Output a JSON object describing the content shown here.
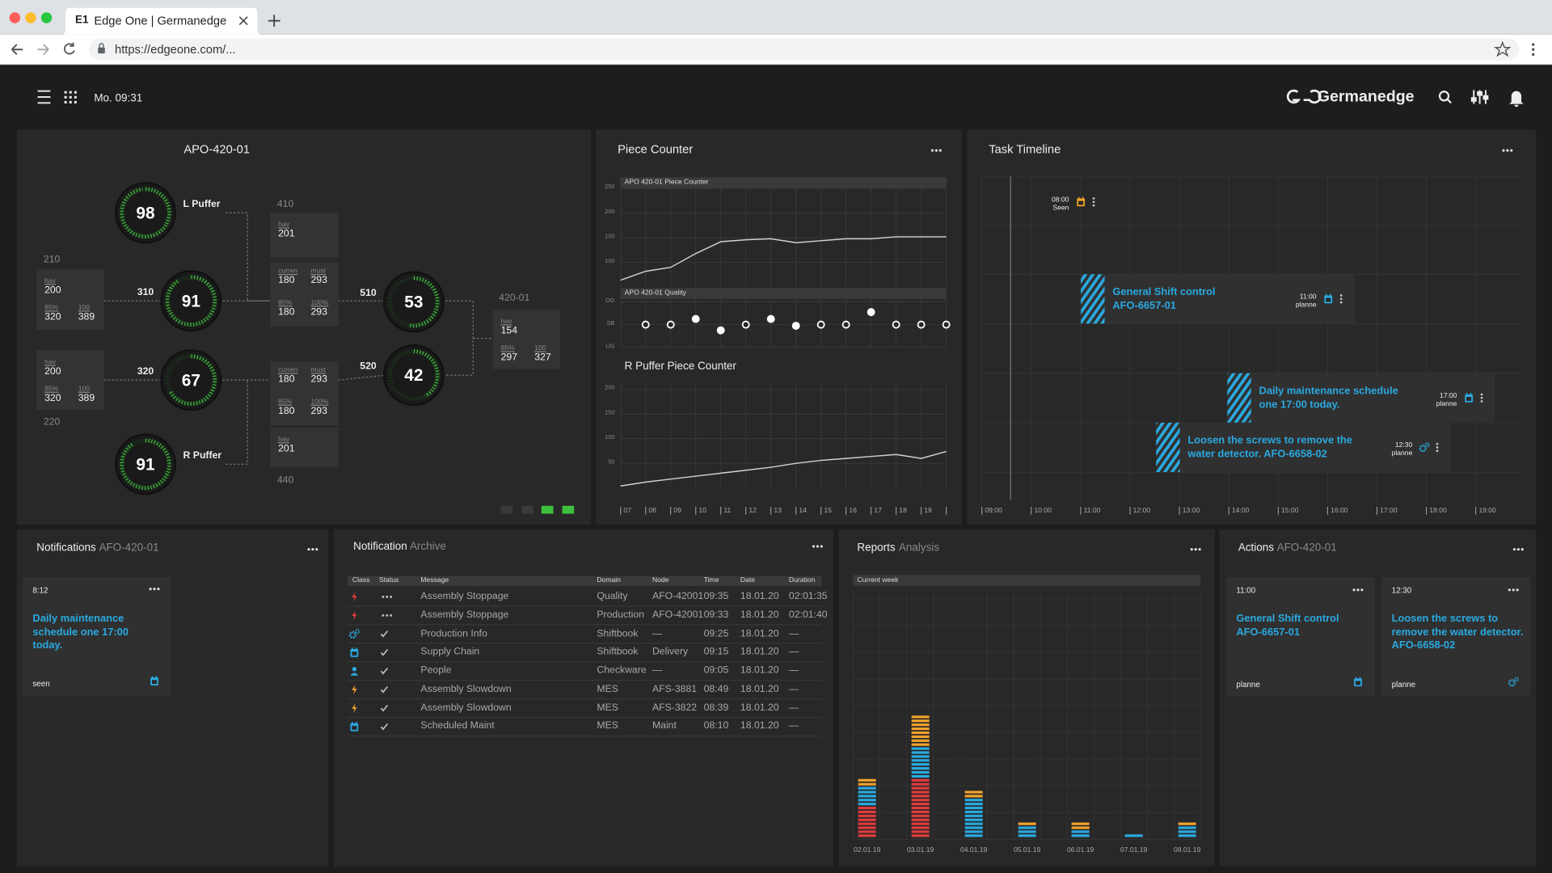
{
  "browser": {
    "tab_icon": "E1",
    "tab_title": "Edge One | Germanedge",
    "url": "https://edgeone.com/..."
  },
  "header": {
    "time": "Mo. 09:31",
    "brand": "Germanedge"
  },
  "machine": {
    "title": "APO-420-01",
    "gauges": [
      {
        "value": 98,
        "label": "L Puffer"
      },
      {
        "value": 91,
        "label": "310"
      },
      {
        "value": 67,
        "label": "320"
      },
      {
        "value": 91,
        "label": "R Puffer"
      },
      {
        "value": 53,
        "label": "510"
      },
      {
        "value": 42,
        "label": "520"
      }
    ],
    "nodes": [
      "210",
      "220",
      "410",
      "440",
      "420-01"
    ],
    "boxes": [
      [
        {
          "label": "hav",
          "value": 200
        },
        {
          "label": "85%",
          "value": 320
        },
        {
          "label": "100",
          "value": 389
        }
      ],
      [
        {
          "label": "hav",
          "value": 200
        },
        {
          "label": "85%",
          "value": 320
        },
        {
          "label": "100",
          "value": 389
        }
      ],
      [
        {
          "label": "hav",
          "value": 201
        }
      ],
      [
        {
          "label": "curren",
          "value": 180
        },
        {
          "label": "must",
          "value": 293
        },
        {
          "label": "85%",
          "value": 180
        },
        {
          "label": "100%",
          "value": 293
        }
      ],
      [
        {
          "label": "curren",
          "value": 180
        },
        {
          "label": "must",
          "value": 293
        },
        {
          "label": "85%",
          "value": 180
        },
        {
          "label": "100%",
          "value": 293
        }
      ],
      [
        {
          "label": "hav",
          "value": 201
        }
      ],
      [
        {
          "label": "hav",
          "value": 154
        },
        {
          "label": "85%",
          "value": 297
        },
        {
          "label": "100",
          "value": 327
        }
      ]
    ]
  },
  "piece_counter": {
    "title": "Piece Counter",
    "categories": [
      "07",
      "08",
      "09",
      "10",
      "11",
      "12",
      "13",
      "14",
      "15",
      "16",
      "17",
      "18",
      "19",
      null
    ],
    "charts": [
      {
        "type": "line",
        "title": "APO 420-01 Piece Counter",
        "ylim": [
          50,
          275
        ],
        "yticks": [
          100,
          150,
          200,
          250
        ],
        "grid": true,
        "series": [
          {
            "color": "#d0d0d0",
            "values": [
              64,
              82,
              90,
              118,
              142,
              146,
              148,
              140,
              144,
              148,
              148,
              152,
              152,
              152
            ]
          }
        ]
      },
      {
        "type": "scatter",
        "title": "APO 420-01 Quality",
        "ylim": [
          -1,
          1
        ],
        "yticks": [
          {
            "value": -1,
            "label": "UG"
          },
          {
            "value": 0,
            "label": "SB"
          },
          {
            "value": 1,
            "label": "OG"
          }
        ],
        "grid": true,
        "series": [
          {
            "color": "#ffffff",
            "filled": false,
            "values": [
              null,
              0,
              0,
              null,
              null,
              0,
              null,
              null,
              0,
              0,
              null,
              0,
              0,
              0
            ]
          },
          {
            "color": "#ffffff",
            "filled": true,
            "values": [
              null,
              null,
              null,
              0.25,
              -0.25,
              null,
              0.25,
              -0.05,
              null,
              null,
              0.55,
              null,
              null,
              null
            ]
          }
        ]
      },
      {
        "type": "line",
        "title": "R Puffer Piece Counter",
        "ylim": [
          0,
          215
        ],
        "yticks": [
          50,
          100,
          150,
          200
        ],
        "grid": true,
        "series": [
          {
            "color": "#d0d0d0",
            "values": [
              4,
              12,
              18,
              24,
              30,
              36,
              42,
              50,
              56,
              60,
              64,
              68,
              60,
              74
            ]
          }
        ]
      }
    ]
  },
  "timeline": {
    "title": "Task Timeline",
    "times": [
      "09:00",
      "10:00",
      "11:00",
      "12:00",
      "13:00",
      "14:00",
      "15:00",
      "16:00",
      "17:00",
      "18:00",
      "19:00"
    ],
    "marker": {
      "time": "08:00",
      "status": "Seen"
    },
    "tasks": [
      {
        "text": "General Shift control AFO-6657-01",
        "time": "11:00",
        "status": "planne"
      },
      {
        "text": "Daily maintenance schedule one 17:00 today.",
        "time": "17:00",
        "status": "planne"
      },
      {
        "text": "Loosen the screws to remove the water detector. AFO-6658-02",
        "time": "12:30",
        "status": "planne"
      }
    ]
  },
  "notifications": {
    "title": "Notifications",
    "subtitle": "AFO-420-01",
    "cards": [
      {
        "time": "8:12",
        "text": "Daily maintenance schedule one 17:00 today.",
        "status": "seen"
      }
    ]
  },
  "archive": {
    "title": "Notification",
    "subtitle": "Archive",
    "columns": [
      "Class",
      "Status",
      "Message",
      "Domain",
      "Node",
      "Time",
      "Date",
      "Duration"
    ],
    "rows": [
      [
        "Assembly Stoppage",
        "Quality",
        "AFO-42001",
        "09:35",
        "18.01.20",
        "02:01:35"
      ],
      [
        "Assembly Stoppage",
        "Production",
        "AFO-42001",
        "09:33",
        "18.01.20",
        "02:01:40"
      ],
      [
        "Production Info",
        "Shiftbook",
        "—",
        "09:25",
        "18.01.20",
        "—"
      ],
      [
        "Supply Chain",
        "Shiftbook",
        "Delivery",
        "09:15",
        "18.01.20",
        "—"
      ],
      [
        "People",
        "Checkware",
        "—",
        "09:05",
        "18.01.20",
        "—"
      ],
      [
        "Assembly Slowdown",
        "MES",
        "AFS-3881",
        "08:49",
        "18.01.20",
        "—"
      ],
      [
        "Assembly Slowdown",
        "MES",
        "AFS-3822",
        "08:39",
        "18.01.20",
        "—"
      ],
      [
        "Scheduled Maint",
        "MES",
        "Maint",
        "08:10",
        "18.01.20",
        "—"
      ]
    ]
  },
  "reports": {
    "title": "Reports",
    "subtitle": "Analysis",
    "dropdown": "Current week",
    "chart": {
      "type": "bar",
      "stacked": true,
      "categories": [
        "02.01.19",
        "03.01.19",
        "04.01.19",
        "05.01.19",
        "06.01.19",
        "07.01.19",
        "08.01.19"
      ],
      "series": [
        {
          "color": "#e23b3b",
          "values": [
            8,
            15,
            0,
            0,
            0,
            0,
            0
          ]
        },
        {
          "color": "#2aa9e0",
          "values": [
            5,
            8,
            10,
            3,
            2,
            1,
            3
          ]
        },
        {
          "color": "#f2a22c",
          "values": [
            2,
            8,
            2,
            1,
            2,
            0,
            1
          ]
        }
      ]
    }
  },
  "actions": {
    "title": "Actions",
    "subtitle": "AFO-420-01",
    "cards": [
      {
        "time": "11:00",
        "text": "General Shift control AFO-6657-01",
        "status": "planne"
      },
      {
        "time": "12:30",
        "text": "Loosen the screws to remove the water detector. AFO-6658-02",
        "status": "planne"
      }
    ]
  }
}
